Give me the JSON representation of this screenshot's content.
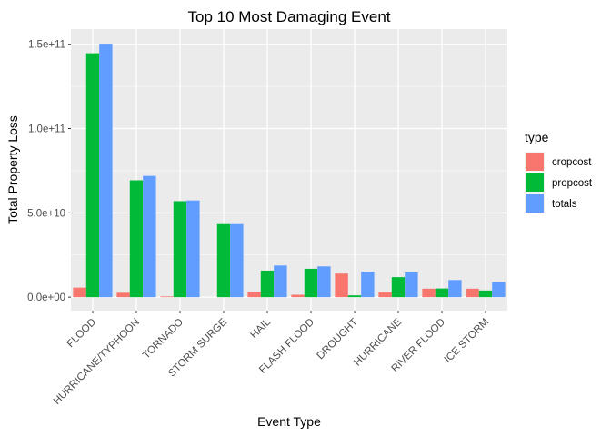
{
  "chart_data": {
    "type": "bar",
    "title": "Top 10 Most Damaging Event",
    "xlabel": "Event Type",
    "ylabel": "Total Property Loss",
    "categories": [
      "FLOOD",
      "HURRICANE/TYPHOON",
      "TORNADO",
      "STORM SURGE",
      "HAIL",
      "FLASH FLOOD",
      "DROUGHT",
      "HURRICANE",
      "RIVER FLOOD",
      "ICE STORM"
    ],
    "series": [
      {
        "name": "cropcost",
        "color": "#F8766D",
        "values": [
          5660000000.0,
          2610000000.0,
          420000000.0,
          0.0,
          3030000000.0,
          1420000000.0,
          13970000000.0,
          2740000000.0,
          5030000000.0,
          5020000000.0
        ]
      },
      {
        "name": "propcost",
        "color": "#00BA38",
        "values": [
          144660000000.0,
          69310000000.0,
          56940000000.0,
          43320000000.0,
          15740000000.0,
          16820000000.0,
          1050000000.0,
          11870000000.0,
          5120000000.0,
          3940000000.0
        ]
      },
      {
        "name": "totals",
        "color": "#619CFF",
        "values": [
          150320000000.0,
          71910000000.0,
          57360000000.0,
          43320000000.0,
          18760000000.0,
          18240000000.0,
          15020000000.0,
          14610000000.0,
          10150000000.0,
          8970000000.0
        ]
      }
    ],
    "ylim": [
      -8000000000.0,
      159000000000.0
    ],
    "yticks": [
      0,
      50000000000.0,
      100000000000.0,
      150000000000.0
    ],
    "ytick_labels": [
      "0.0e+00",
      "5.0e+10",
      "1.0e+11",
      "1.5e+11"
    ],
    "legend": {
      "title": "type",
      "position": "right"
    },
    "grid": true
  }
}
